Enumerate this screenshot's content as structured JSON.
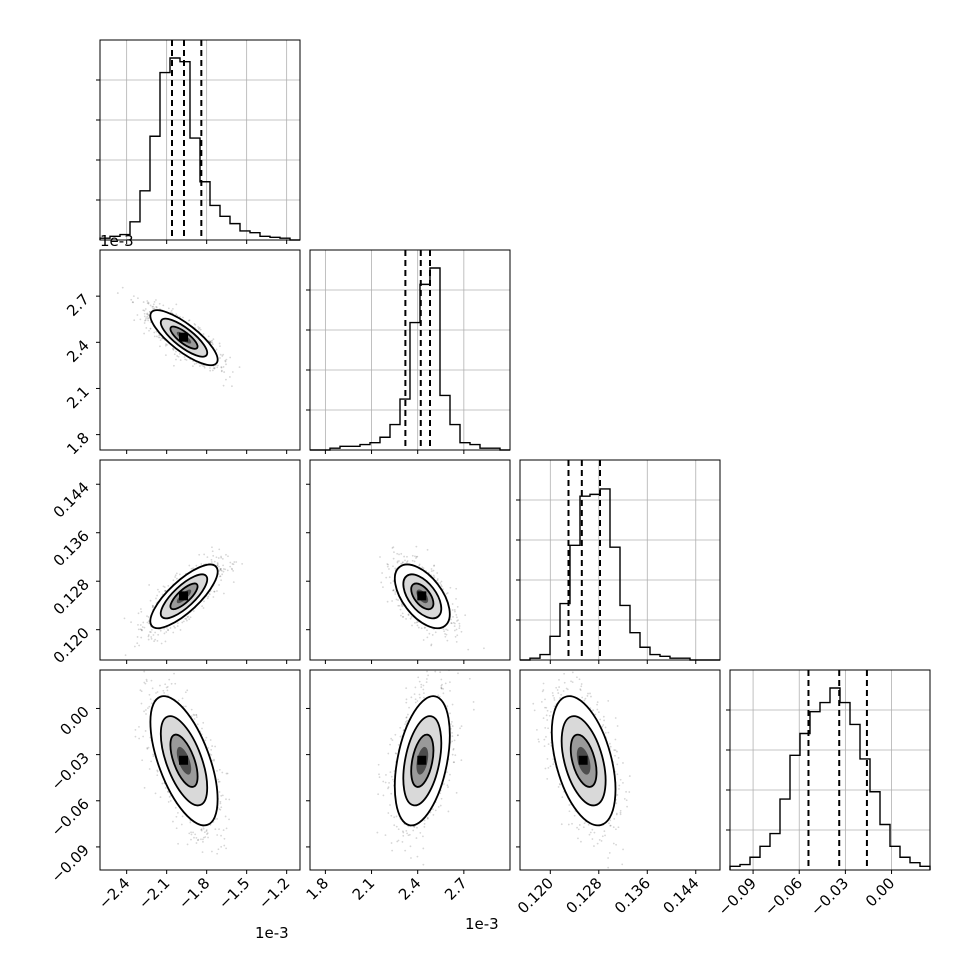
{
  "chart_data": {
    "type": "corner",
    "parameters": [
      {
        "offset_label": "1e-3",
        "range": [
          -2.6,
          -1.1
        ],
        "ticks": [
          -2.4,
          -2.1,
          -1.8,
          -1.5,
          -1.2
        ],
        "tick_labels": [
          "−2.4",
          "−2.1",
          "−1.8",
          "−1.5",
          "−1.2"
        ],
        "center": -1.97,
        "sigma": 0.12,
        "quantiles": [
          -2.06,
          -1.97,
          -1.84
        ]
      },
      {
        "offset_label": "1e-3",
        "range": [
          1.7,
          3.0
        ],
        "ticks": [
          1.8,
          2.1,
          2.4,
          2.7
        ],
        "tick_labels": [
          "1.8",
          "2.1",
          "2.4",
          "2.7"
        ],
        "center": 2.43,
        "sigma": 0.085,
        "quantiles": [
          2.32,
          2.42,
          2.48
        ]
      },
      {
        "offset_label": "",
        "range": [
          0.115,
          0.148
        ],
        "ticks": [
          0.12,
          0.128,
          0.136,
          0.144
        ],
        "tick_labels": [
          "0.120",
          "0.128",
          "0.136",
          "0.144"
        ],
        "center": 0.1255,
        "sigma": 0.0025,
        "quantiles": [
          0.123,
          0.1252,
          0.1282
        ]
      },
      {
        "offset_label": "",
        "range": [
          -0.105,
          0.025
        ],
        "ticks": [
          -0.09,
          -0.06,
          -0.03,
          0.0
        ],
        "tick_labels": [
          "−0.09",
          "−0.06",
          "−0.03",
          "0.00"
        ],
        "center": -0.034,
        "sigma": 0.02,
        "quantiles": [
          -0.054,
          -0.034,
          -0.016
        ]
      }
    ],
    "correlations": [
      [
        0,
        1,
        -0.8
      ],
      [
        0,
        2,
        0.78
      ],
      [
        1,
        2,
        -0.55
      ],
      [
        0,
        3,
        -0.6
      ],
      [
        1,
        3,
        0.4
      ],
      [
        2,
        3,
        -0.45
      ]
    ],
    "histograms": [
      [
        0.01,
        0.02,
        0.03,
        0.1,
        0.27,
        0.57,
        0.92,
        1.0,
        0.98,
        0.56,
        0.32,
        0.19,
        0.13,
        0.09,
        0.05,
        0.04,
        0.02,
        0.015,
        0.01,
        0.0
      ],
      [
        0.0,
        0.0,
        0.01,
        0.02,
        0.02,
        0.03,
        0.04,
        0.07,
        0.14,
        0.28,
        0.7,
        0.91,
        1.0,
        0.3,
        0.14,
        0.04,
        0.03,
        0.01,
        0.01,
        0.0
      ],
      [
        0.0,
        0.01,
        0.03,
        0.13,
        0.31,
        0.63,
        0.9,
        0.91,
        0.94,
        0.62,
        0.3,
        0.15,
        0.07,
        0.03,
        0.02,
        0.01,
        0.01,
        0.0,
        0.0,
        0.0
      ],
      [
        0.02,
        0.03,
        0.07,
        0.13,
        0.2,
        0.39,
        0.63,
        0.75,
        0.87,
        0.92,
        1.0,
        0.92,
        0.8,
        0.61,
        0.43,
        0.25,
        0.13,
        0.07,
        0.04,
        0.02
      ]
    ]
  }
}
